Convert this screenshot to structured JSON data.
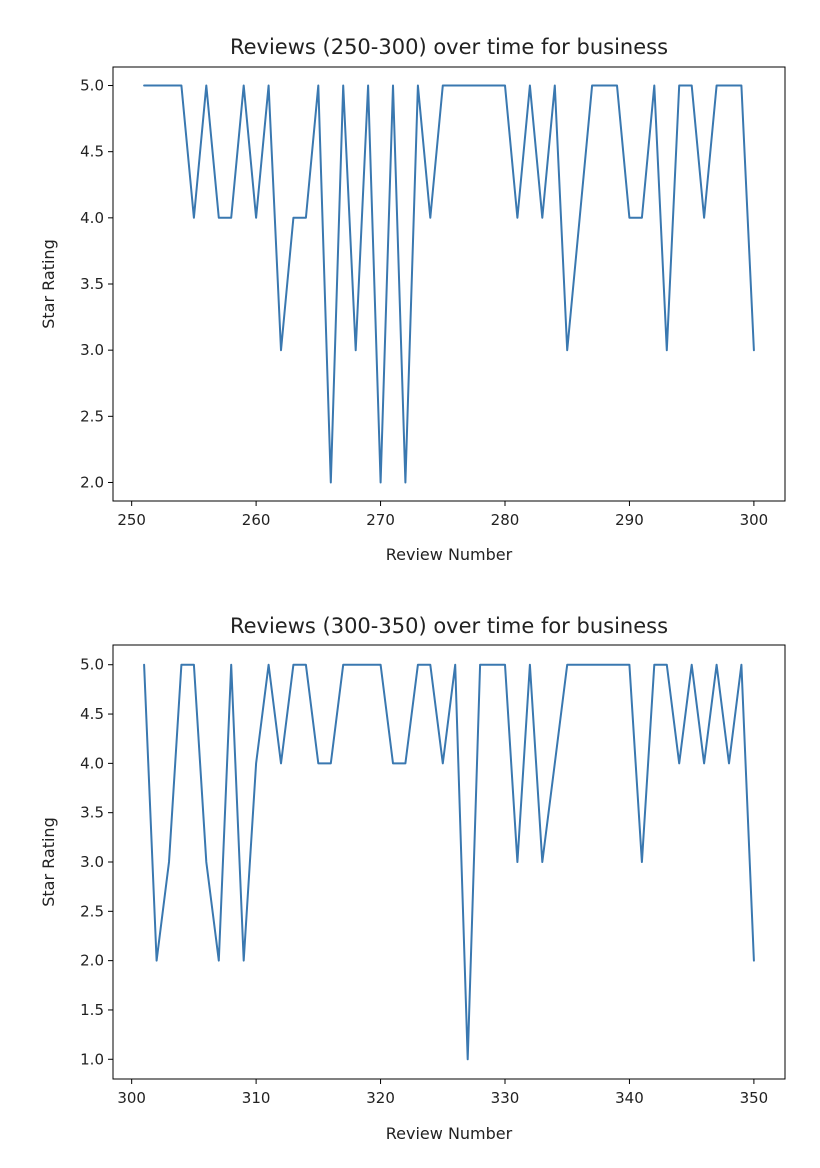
{
  "colors": {
    "series": "#3a78b0"
  },
  "chart_data": [
    {
      "type": "line",
      "title": "Reviews (250-300) over time for business",
      "xlabel": "Review Number",
      "ylabel": "Star Rating",
      "xlim": [
        248.5,
        302.5
      ],
      "ylim": [
        1.86,
        5.14
      ],
      "xticks": [
        250,
        260,
        270,
        280,
        290,
        300
      ],
      "yticks": [
        2.0,
        2.5,
        3.0,
        3.5,
        4.0,
        4.5,
        5.0
      ],
      "xtick_labels": [
        "250",
        "260",
        "270",
        "280",
        "290",
        "300"
      ],
      "ytick_labels": [
        "2.0",
        "2.5",
        "3.0",
        "3.5",
        "4.0",
        "4.5",
        "5.0"
      ],
      "grid": false,
      "x": [
        251,
        252,
        253,
        254,
        255,
        256,
        257,
        258,
        259,
        260,
        261,
        262,
        263,
        264,
        265,
        266,
        267,
        268,
        269,
        270,
        271,
        272,
        273,
        274,
        275,
        276,
        277,
        278,
        279,
        280,
        281,
        282,
        283,
        284,
        285,
        286,
        287,
        288,
        289,
        290,
        291,
        292,
        293,
        294,
        295,
        296,
        297,
        298,
        299,
        300
      ],
      "y": [
        5,
        5,
        5,
        5,
        4,
        5,
        4,
        4,
        5,
        4,
        5,
        3,
        4,
        4,
        5,
        2,
        5,
        3,
        5,
        2,
        5,
        2,
        5,
        4,
        5,
        5,
        5,
        5,
        5,
        5,
        4,
        5,
        4,
        5,
        3,
        4,
        5,
        5,
        5,
        4,
        4,
        5,
        3,
        5,
        5,
        4,
        5,
        5,
        5,
        3
      ]
    },
    {
      "type": "line",
      "title": "Reviews (300-350) over time for business",
      "xlabel": "Review Number",
      "ylabel": "Star Rating",
      "xlim": [
        298.5,
        352.5
      ],
      "ylim": [
        0.8,
        5.2
      ],
      "xticks": [
        300,
        310,
        320,
        330,
        340,
        350
      ],
      "yticks": [
        1.0,
        1.5,
        2.0,
        2.5,
        3.0,
        3.5,
        4.0,
        4.5,
        5.0
      ],
      "xtick_labels": [
        "300",
        "310",
        "320",
        "330",
        "340",
        "350"
      ],
      "ytick_labels": [
        "1.0",
        "1.5",
        "2.0",
        "2.5",
        "3.0",
        "3.5",
        "4.0",
        "4.5",
        "5.0"
      ],
      "grid": false,
      "x": [
        301,
        302,
        303,
        304,
        305,
        306,
        307,
        308,
        309,
        310,
        311,
        312,
        313,
        314,
        315,
        316,
        317,
        318,
        319,
        320,
        321,
        322,
        323,
        324,
        325,
        326,
        327,
        328,
        329,
        330,
        331,
        332,
        333,
        334,
        335,
        336,
        337,
        338,
        339,
        340,
        341,
        342,
        343,
        344,
        345,
        346,
        347,
        348,
        349,
        350
      ],
      "y": [
        5,
        2,
        3,
        5,
        5,
        3,
        2,
        5,
        2,
        4,
        5,
        4,
        5,
        5,
        4,
        4,
        5,
        5,
        5,
        5,
        4,
        4,
        5,
        5,
        4,
        5,
        1,
        5,
        5,
        5,
        3,
        5,
        3,
        4,
        5,
        5,
        5,
        5,
        5,
        5,
        3,
        5,
        5,
        4,
        5,
        4,
        5,
        4,
        5,
        2
      ]
    }
  ]
}
